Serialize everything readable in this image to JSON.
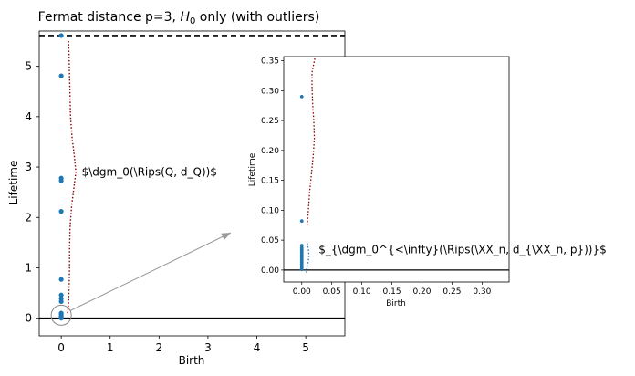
{
  "chart_data": [
    {
      "type": "scatter",
      "title": "Fermat distance p=3, H₀ only (with outliers)",
      "title_parts": {
        "prefix": "Fermat distance p=3, ",
        "h": "H",
        "sub": "0",
        "suffix": " only (with outliers)"
      },
      "xlabel": "Birth",
      "ylabel": "Lifetime",
      "xlim": [
        -0.45,
        5.8
      ],
      "ylim": [
        -0.35,
        5.7
      ],
      "xticks": [
        0,
        1,
        2,
        3,
        4,
        5
      ],
      "yticks": [
        0,
        1,
        2,
        3,
        4,
        5
      ],
      "xtick_labels": [
        "0",
        "1",
        "2",
        "3",
        "4",
        "5"
      ],
      "ytick_labels": [
        "0",
        "1",
        "2",
        "3",
        "4",
        "5"
      ],
      "grid": false,
      "point_color": "#1f77b4",
      "points": [
        {
          "x": 0,
          "y": 5.61
        },
        {
          "x": 0,
          "y": 4.81
        },
        {
          "x": 0,
          "y": 2.78
        },
        {
          "x": 0,
          "y": 2.73
        },
        {
          "x": 0,
          "y": 2.12
        },
        {
          "x": 0,
          "y": 0.77
        },
        {
          "x": 0,
          "y": 0.46
        },
        {
          "x": 0,
          "y": 0.39
        },
        {
          "x": 0,
          "y": 0.33
        },
        {
          "x": 0,
          "y": 0.1
        },
        {
          "x": 0,
          "y": 0.07
        },
        {
          "x": 0,
          "y": 0.04
        },
        {
          "x": 0,
          "y": 0.02
        },
        {
          "x": 0,
          "y": 0.0
        }
      ],
      "dashed_line_y": 5.61,
      "baseline_y": 0,
      "density_curve_color": "#8b0000",
      "density_curve": [
        [
          0.13,
          0.1
        ],
        [
          0.15,
          0.3
        ],
        [
          0.16,
          0.6
        ],
        [
          0.17,
          1.0
        ],
        [
          0.17,
          1.4
        ],
        [
          0.18,
          1.8
        ],
        [
          0.21,
          2.2
        ],
        [
          0.26,
          2.6
        ],
        [
          0.3,
          2.9
        ],
        [
          0.27,
          3.2
        ],
        [
          0.22,
          3.6
        ],
        [
          0.19,
          4.0
        ],
        [
          0.18,
          4.4
        ],
        [
          0.17,
          4.8
        ],
        [
          0.16,
          5.2
        ],
        [
          0.15,
          5.5
        ]
      ],
      "annotation": "$\\dgm_0(\\Rips(Q, d_Q))$",
      "annotation_at": {
        "x": 0.42,
        "y": 2.9
      },
      "zoom_circle_at": {
        "x": 0,
        "y": 0.06
      }
    },
    {
      "type": "scatter",
      "xlabel": "Birth",
      "ylabel": "Lifetime",
      "xlim": [
        -0.03,
        0.345
      ],
      "ylim": [
        -0.02,
        0.357
      ],
      "xticks": [
        0,
        0.05,
        0.1,
        0.15,
        0.2,
        0.25,
        0.3
      ],
      "yticks": [
        0,
        0.05,
        0.1,
        0.15,
        0.2,
        0.25,
        0.3,
        0.35
      ],
      "xtick_labels": [
        "0.00",
        "0.05",
        "0.10",
        "0.15",
        "0.20",
        "0.25",
        "0.30"
      ],
      "ytick_labels": [
        "0.00",
        "0.05",
        "0.10",
        "0.15",
        "0.20",
        "0.25",
        "0.30",
        "0.35"
      ],
      "grid": false,
      "point_color": "#1f77b4",
      "points": [
        {
          "x": 0,
          "y": 0.29
        },
        {
          "x": 0,
          "y": 0.082
        },
        {
          "x": 0,
          "y": 0.041
        },
        {
          "x": 0,
          "y": 0.037
        },
        {
          "x": 0,
          "y": 0.034
        },
        {
          "x": 0,
          "y": 0.031
        },
        {
          "x": 0,
          "y": 0.028
        },
        {
          "x": 0,
          "y": 0.025
        },
        {
          "x": 0,
          "y": 0.022
        },
        {
          "x": 0,
          "y": 0.019
        },
        {
          "x": 0,
          "y": 0.016
        },
        {
          "x": 0,
          "y": 0.013
        },
        {
          "x": 0,
          "y": 0.01
        },
        {
          "x": 0,
          "y": 0.007
        },
        {
          "x": 0,
          "y": 0.004
        },
        {
          "x": 0,
          "y": 0.001
        }
      ],
      "baseline_y": 0,
      "density_curve_color": "#8b0000",
      "density_curve": [
        [
          0.009,
          0.075
        ],
        [
          0.011,
          0.1
        ],
        [
          0.013,
          0.13
        ],
        [
          0.016,
          0.16
        ],
        [
          0.019,
          0.19
        ],
        [
          0.021,
          0.22
        ],
        [
          0.02,
          0.25
        ],
        [
          0.018,
          0.28
        ],
        [
          0.017,
          0.31
        ],
        [
          0.017,
          0.33
        ],
        [
          0.022,
          0.355
        ]
      ],
      "small_curve_color": "#1f77b4",
      "small_curve": [
        [
          0.009,
          0.045
        ],
        [
          0.011,
          0.035
        ],
        [
          0.012,
          0.025
        ],
        [
          0.011,
          0.015
        ],
        [
          0.009,
          0.005
        ],
        [
          0.007,
          -0.004
        ]
      ],
      "annotation": "$_{\\dgm_0^{<\\infty}(\\Rips(\\XX_n, d_{\\XX_n, p}))}$",
      "annotation_at": {
        "x": 0.028,
        "y": 0.034
      }
    }
  ]
}
